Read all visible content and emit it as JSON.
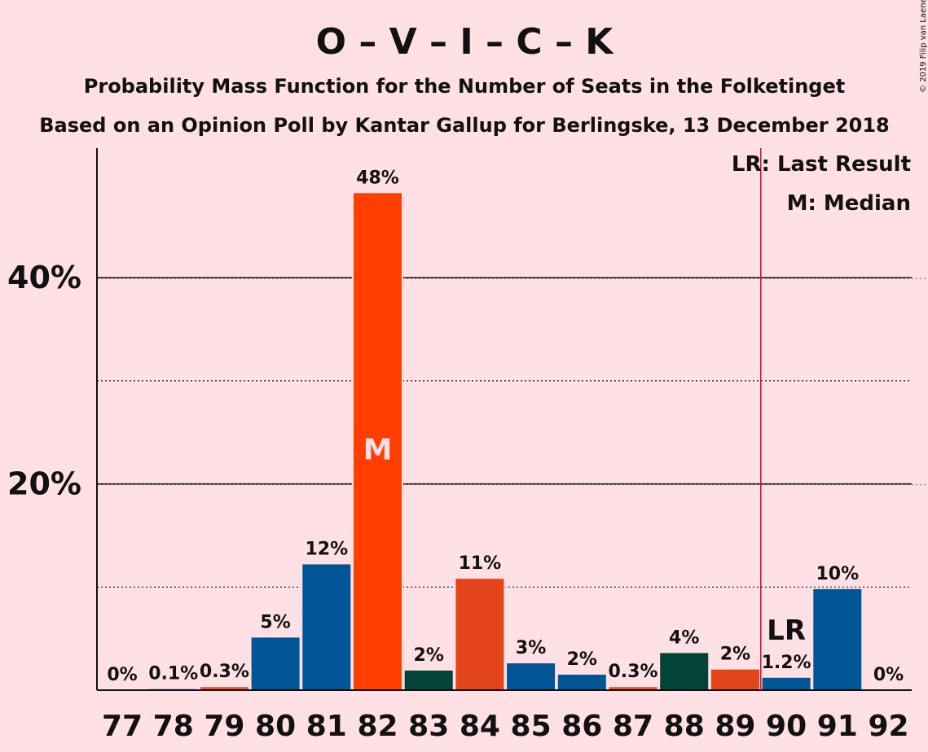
{
  "header": {
    "title": "O – V – I – C – K",
    "subtitle": "Probability Mass Function for the Number of Seats in the Folketinget",
    "subtitle2": "Based on an Opinion Poll by Kantar Gallup for Berlingske, 13 December 2018",
    "copyright": "© 2019 Filip van Laenen"
  },
  "legend": {
    "last_result": "LR: Last Result",
    "median": "M: Median"
  },
  "colors": {
    "background": "#FFE0E4",
    "lr_line": "#C8102E"
  },
  "chart_data": {
    "type": "bar",
    "categories": [
      "77",
      "78",
      "79",
      "80",
      "81",
      "82",
      "83",
      "84",
      "85",
      "86",
      "87",
      "88",
      "89",
      "90",
      "91",
      "92"
    ],
    "values": [
      0,
      0.1,
      0.3,
      5,
      12,
      48,
      2,
      11,
      3,
      2,
      0.3,
      4,
      2,
      1.2,
      10,
      0
    ],
    "value_fractions": [
      0,
      0.001,
      0.003,
      0.051,
      0.122,
      0.482,
      0.019,
      0.108,
      0.026,
      0.015,
      0.003,
      0.036,
      0.02,
      0.012,
      0.098,
      0
    ],
    "labels": [
      "0%",
      "0.1%",
      "0.3%",
      "5%",
      "12%",
      "48%",
      "2%",
      "11%",
      "3%",
      "2%",
      "0.3%",
      "4%",
      "2%",
      "1.2%",
      "10%",
      "0%"
    ],
    "bar_colors": [
      "#005596",
      "#005596",
      "#F04D23",
      "#005596",
      "#005596",
      "#FF3E00",
      "#034438",
      "#E4441A",
      "#005596",
      "#005596",
      "#F04D23",
      "#034438",
      "#E4441A",
      "#005596",
      "#005596",
      "#005596"
    ],
    "median_category": "82",
    "median_marker": "M",
    "last_result_category": "90",
    "last_result_marker": "LR",
    "y_ticks": [
      {
        "value": 20,
        "label": "20%"
      },
      {
        "value": 40,
        "label": "40%"
      }
    ],
    "minor_gridlines": [
      10,
      30
    ],
    "ylim": [
      0,
      52.5
    ]
  }
}
